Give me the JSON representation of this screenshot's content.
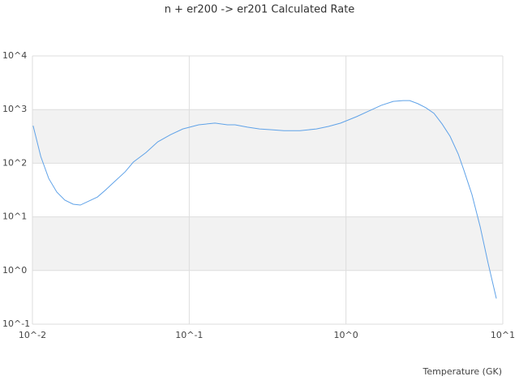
{
  "chart_data": {
    "type": "line",
    "title": "n + er200 -> er201 Calculated Rate",
    "x_label": "Temperature (GK)",
    "xscale": "log",
    "yscale": "log",
    "grid": true,
    "band_color": "#f2f2f2",
    "xlim": [
      0.01,
      10
    ],
    "ylim": [
      0.1,
      10000
    ],
    "xticks": [
      {
        "value": 0.01,
        "label": "10^-2"
      },
      {
        "value": 0.1,
        "label": "10^-1"
      },
      {
        "value": 1,
        "label": "10^0"
      },
      {
        "value": 10,
        "label": "10^1"
      }
    ],
    "yticks": [
      {
        "value": 0.1,
        "label": "10^-1"
      },
      {
        "value": 1,
        "label": "10^0"
      },
      {
        "value": 10,
        "label": "10^1"
      },
      {
        "value": 100,
        "label": "10^2"
      },
      {
        "value": 1000,
        "label": "10^3"
      },
      {
        "value": 10000,
        "label": "10^4"
      }
    ],
    "series": [
      {
        "color": "#5fa2e8",
        "x": [
          0.0101,
          0.0113,
          0.0127,
          0.0143,
          0.0161,
          0.0182,
          0.0202,
          0.023,
          0.026,
          0.029,
          0.033,
          0.039,
          0.044,
          0.053,
          0.063,
          0.076,
          0.091,
          0.115,
          0.146,
          0.175,
          0.196,
          0.235,
          0.281,
          0.336,
          0.402,
          0.509,
          0.647,
          0.773,
          0.925,
          1.17,
          1.4,
          1.68,
          2.0,
          2.31,
          2.55,
          2.87,
          3.23,
          3.64,
          4.1,
          4.61,
          5.2,
          5.65,
          6.36,
          7.18,
          8.07,
          9.1
        ],
        "values": [
          500,
          134,
          52,
          29,
          20.5,
          17.2,
          16.6,
          19.8,
          23.5,
          31,
          44,
          69,
          105,
          158,
          250,
          340,
          435,
          520,
          560,
          520,
          520,
          470,
          435,
          420,
          405,
          405,
          435,
          485,
          560,
          740,
          940,
          1200,
          1420,
          1470,
          1470,
          1290,
          1080,
          850,
          540,
          318,
          148,
          74,
          26,
          6.5,
          1.35,
          0.3
        ]
      }
    ]
  }
}
